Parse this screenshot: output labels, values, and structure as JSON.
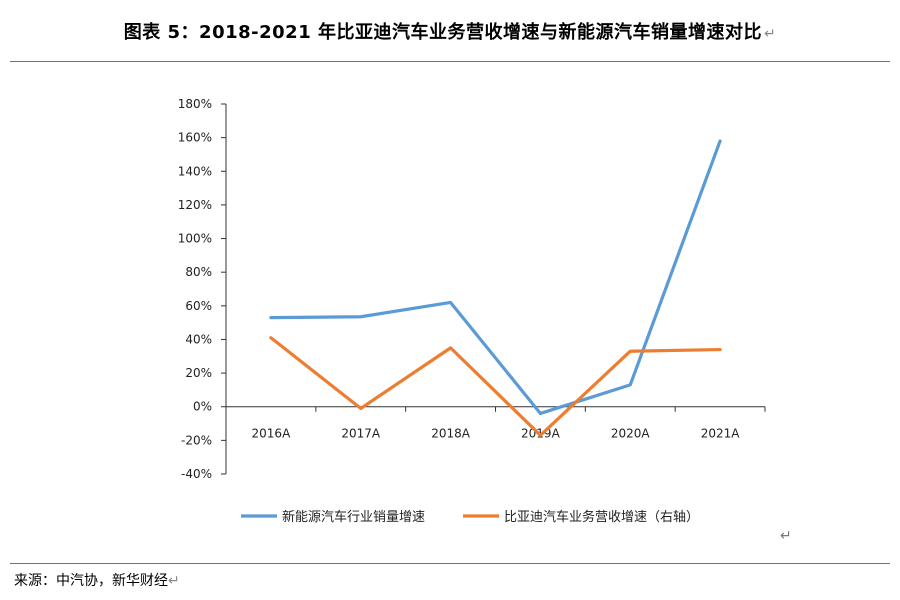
{
  "title": "图表 5：2018-2021 年比亚迪汽车业务营收增速与新能源汽车销量增速对比",
  "return_glyph": "↵",
  "source": "来源：中汽协，新华财经",
  "colors": {
    "blue": "#5b9bd5",
    "orange": "#ed7d31",
    "rule": "#5a7a8c"
  },
  "chart_data": {
    "type": "line",
    "categories": [
      "2016A",
      "2017A",
      "2018A",
      "2019A",
      "2020A",
      "2021A"
    ],
    "y_ticks": [
      "180%",
      "160%",
      "140%",
      "120%",
      "100%",
      "80%",
      "60%",
      "40%",
      "20%",
      "0%",
      "-20%",
      "-40%"
    ],
    "ylim": [
      -40,
      180
    ],
    "series": [
      {
        "name": "新能源汽车行业销量增速",
        "color": "#5b9bd5",
        "values": [
          53,
          53.5,
          62,
          -4,
          13,
          158
        ]
      },
      {
        "name": "比亚迪汽车业务营收增速（右轴）",
        "color": "#ed7d31",
        "values": [
          41,
          -1,
          35,
          -17,
          33,
          34
        ]
      }
    ],
    "legend": [
      {
        "label": "新能源汽车行业销量增速",
        "color": "#5b9bd5"
      },
      {
        "label": "比亚迪汽车业务营收增速（右轴）",
        "color": "#ed7d31"
      }
    ],
    "legend_position": "bottom",
    "grid": false
  }
}
